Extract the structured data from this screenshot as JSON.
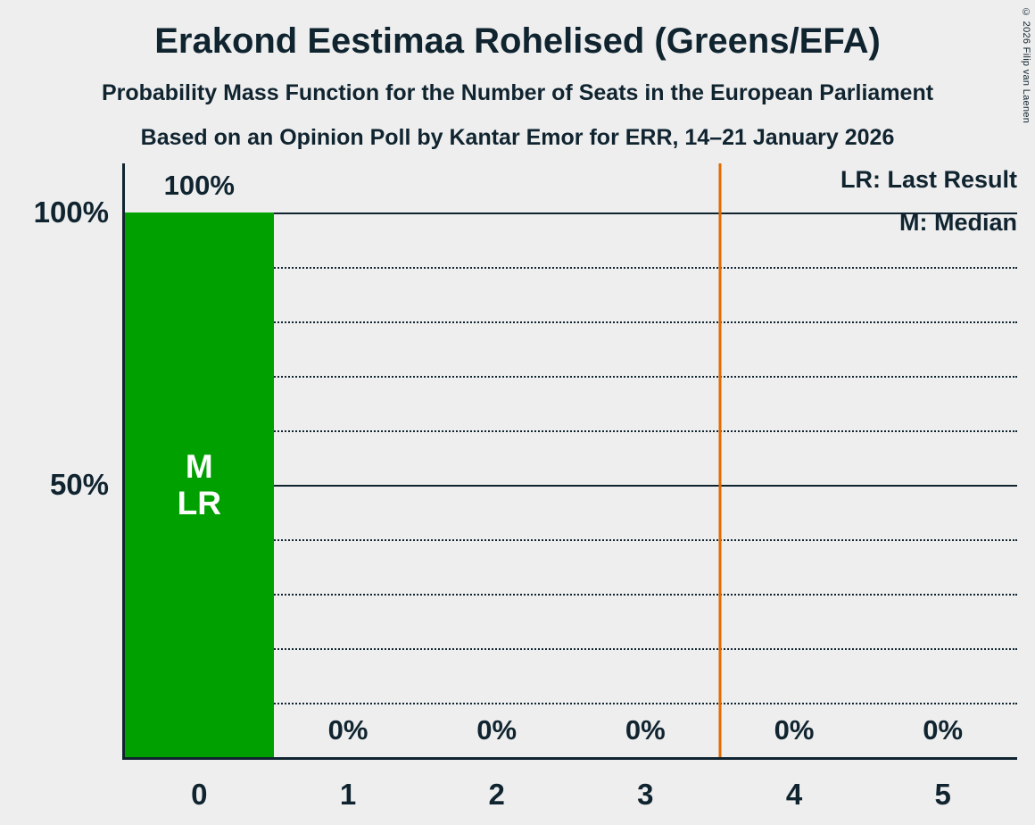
{
  "header": {
    "title": "Erakond Eestimaa Rohelised (Greens/EFA)",
    "subtitle": "Probability Mass Function for the Number of Seats in the European Parliament",
    "poll_line": "Based on an Opinion Poll by Kantar Emor for ERR, 14–21 January 2026"
  },
  "copyright": "© 2026 Filip van Laenen",
  "legend": {
    "last_result": "LR: Last Result",
    "median": "M: Median"
  },
  "colors": {
    "background": "#eeeeee",
    "text": "#102430",
    "bar": "#00a000",
    "bar_label": "#ffffff",
    "threshold_line": "#e06b00"
  },
  "chart_data": {
    "type": "bar",
    "title": "Probability Mass Function for the Number of Seats in the European Parliament",
    "categories": [
      "0",
      "1",
      "2",
      "3",
      "4",
      "5"
    ],
    "values": [
      100,
      0,
      0,
      0,
      0,
      0
    ],
    "value_labels": [
      "100%",
      "0%",
      "0%",
      "0%",
      "0%",
      "0%"
    ],
    "ylim": [
      0,
      100
    ],
    "y_ticks": [
      {
        "value": 100,
        "label": "100%"
      },
      {
        "value": 50,
        "label": "50%"
      }
    ],
    "gridlines": {
      "step": 10,
      "solid_at": [
        50,
        100
      ]
    },
    "bar_annotations": [
      {
        "index": 0,
        "lines": [
          "M",
          "LR"
        ]
      }
    ],
    "threshold_line_x": 3.5,
    "median_seats": 0,
    "last_result_seats": 0,
    "legend_position": "top-right",
    "grid": true
  }
}
